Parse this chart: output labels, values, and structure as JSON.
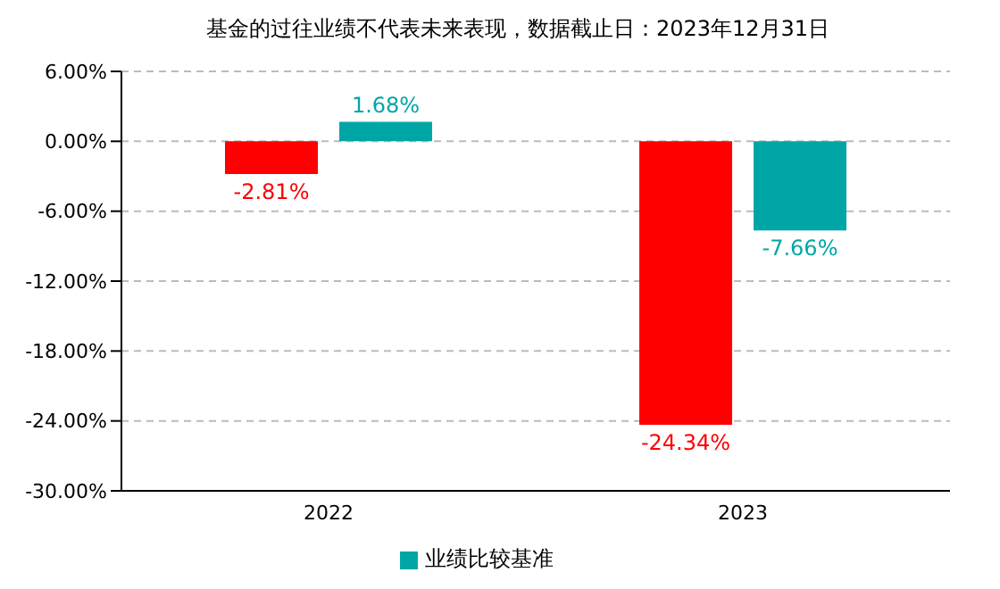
{
  "chart_data": {
    "type": "bar",
    "title": "基金的过往业绩不代表未来表现，数据截止日：2023年12月31日",
    "categories": [
      "2022",
      "2023"
    ],
    "series": [
      {
        "color": "#ff0000",
        "values": [
          -2.81,
          -24.34
        ],
        "value_labels": [
          "-2.81%",
          "-24.34%"
        ]
      },
      {
        "name": "业绩比较基准",
        "color": "#00a6a6",
        "values": [
          1.68,
          -7.66
        ],
        "value_labels": [
          "1.68%",
          "-7.66%"
        ]
      }
    ],
    "ylim": [
      -30,
      6
    ],
    "yticks": [
      {
        "value": 6,
        "label": "6.00%"
      },
      {
        "value": 0,
        "label": "0.00%"
      },
      {
        "value": -6,
        "label": "-6.00%"
      },
      {
        "value": -12,
        "label": "-12.00%"
      },
      {
        "value": -18,
        "label": "-18.00%"
      },
      {
        "value": -24,
        "label": "-24.00%"
      },
      {
        "value": -30,
        "label": "-30.00%"
      }
    ],
    "grid": "y",
    "legend": "bottom"
  }
}
